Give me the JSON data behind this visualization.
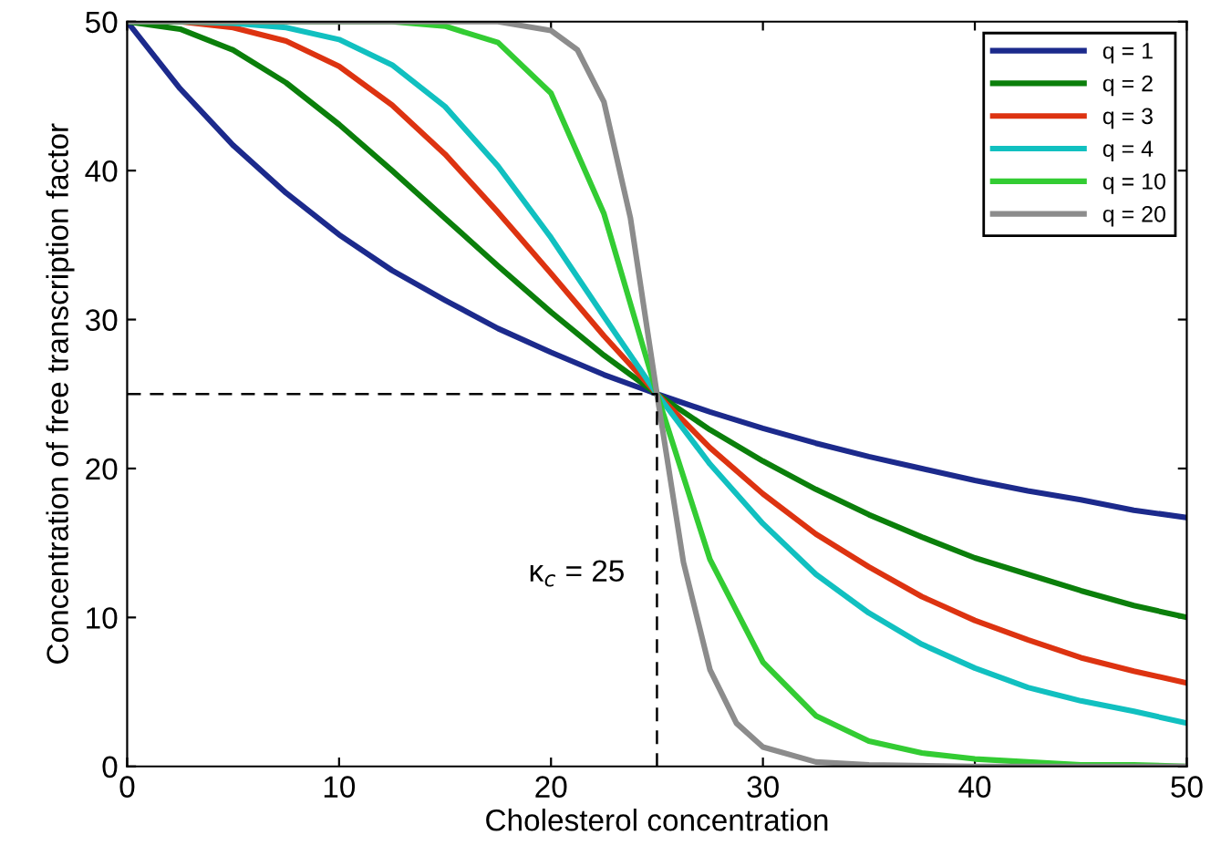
{
  "chart_data": {
    "type": "line",
    "xlabel": "Cholesterol concentration",
    "ylabel": "Concentration of free transcription factor",
    "x": [
      0,
      2.5,
      5,
      7.5,
      10,
      12.5,
      15,
      17.5,
      20,
      22.5,
      25,
      27.5,
      30,
      32.5,
      35,
      37.5,
      40,
      42.5,
      45,
      47.5,
      50
    ],
    "series": [
      {
        "name": "q = 1",
        "color": "#1c2a8c",
        "values": [
          50,
          45.5,
          41.7,
          38.5,
          35.7,
          33.3,
          31.3,
          29.4,
          27.8,
          26.3,
          25,
          23.8,
          22.7,
          21.7,
          20.8,
          20,
          19.2,
          18.5,
          17.9,
          17.2,
          16.7
        ]
      },
      {
        "name": "q = 2",
        "color": "#0b7f0b",
        "values": [
          50,
          49.5,
          48.1,
          45.9,
          43.1,
          40,
          36.8,
          33.6,
          30.5,
          27.6,
          25,
          22.6,
          20.5,
          18.6,
          16.9,
          15.4,
          14.0,
          12.9,
          11.8,
          10.8,
          10
        ]
      },
      {
        "name": "q = 3",
        "color": "#dd3311",
        "values": [
          50,
          50,
          49.6,
          48.7,
          47.0,
          44.4,
          41.1,
          37.2,
          33.1,
          28.9,
          25,
          21.4,
          18.3,
          15.6,
          13.4,
          11.4,
          9.8,
          8.5,
          7.3,
          6.4,
          5.6
        ]
      },
      {
        "name": "q = 4",
        "color": "#11c0c0",
        "values": [
          50,
          50,
          49.9,
          49.6,
          48.8,
          47.1,
          44.3,
          40.3,
          35.5,
          30.2,
          25,
          20.3,
          16.3,
          12.9,
          10.3,
          8.2,
          6.6,
          5.3,
          4.4,
          3.7,
          2.9
        ]
      },
      {
        "name": "q = 10",
        "color": "#33cc33",
        "values": [
          50,
          50,
          50,
          50,
          50,
          50,
          49.7,
          48.6,
          45.2,
          37.1,
          25,
          13.9,
          7.0,
          3.4,
          1.7,
          0.9,
          0.5,
          0.3,
          0.1,
          0.1,
          0
        ]
      },
      {
        "name": "q = 20",
        "color": "#8c8c8c",
        "x": [
          0,
          5,
          10,
          15,
          17.5,
          20,
          21.25,
          22.5,
          23.75,
          25,
          26.25,
          27.5,
          28.75,
          30,
          32.5,
          35,
          40,
          45,
          50
        ],
        "values": [
          50,
          50,
          50,
          50,
          50,
          49.4,
          48.1,
          44.6,
          36.8,
          25,
          13.7,
          6.5,
          2.9,
          1.3,
          0.3,
          0.1,
          0,
          0,
          0
        ]
      },
      {
        "color": "#000000",
        "line_style": "dashed",
        "x": [
          0,
          25,
          25
        ],
        "values": [
          25,
          25,
          0
        ]
      }
    ],
    "annotations": [
      {
        "text": "κ$_{c}$ = 25",
        "x": 25,
        "y": 12
      }
    ],
    "xlim": [
      0,
      50
    ],
    "ylim": [
      0,
      50
    ],
    "xticks": [
      0,
      10,
      20,
      30,
      40,
      50
    ],
    "yticks": [
      0,
      10,
      20,
      30,
      40,
      50
    ],
    "legend": "top right",
    "grid": false
  }
}
